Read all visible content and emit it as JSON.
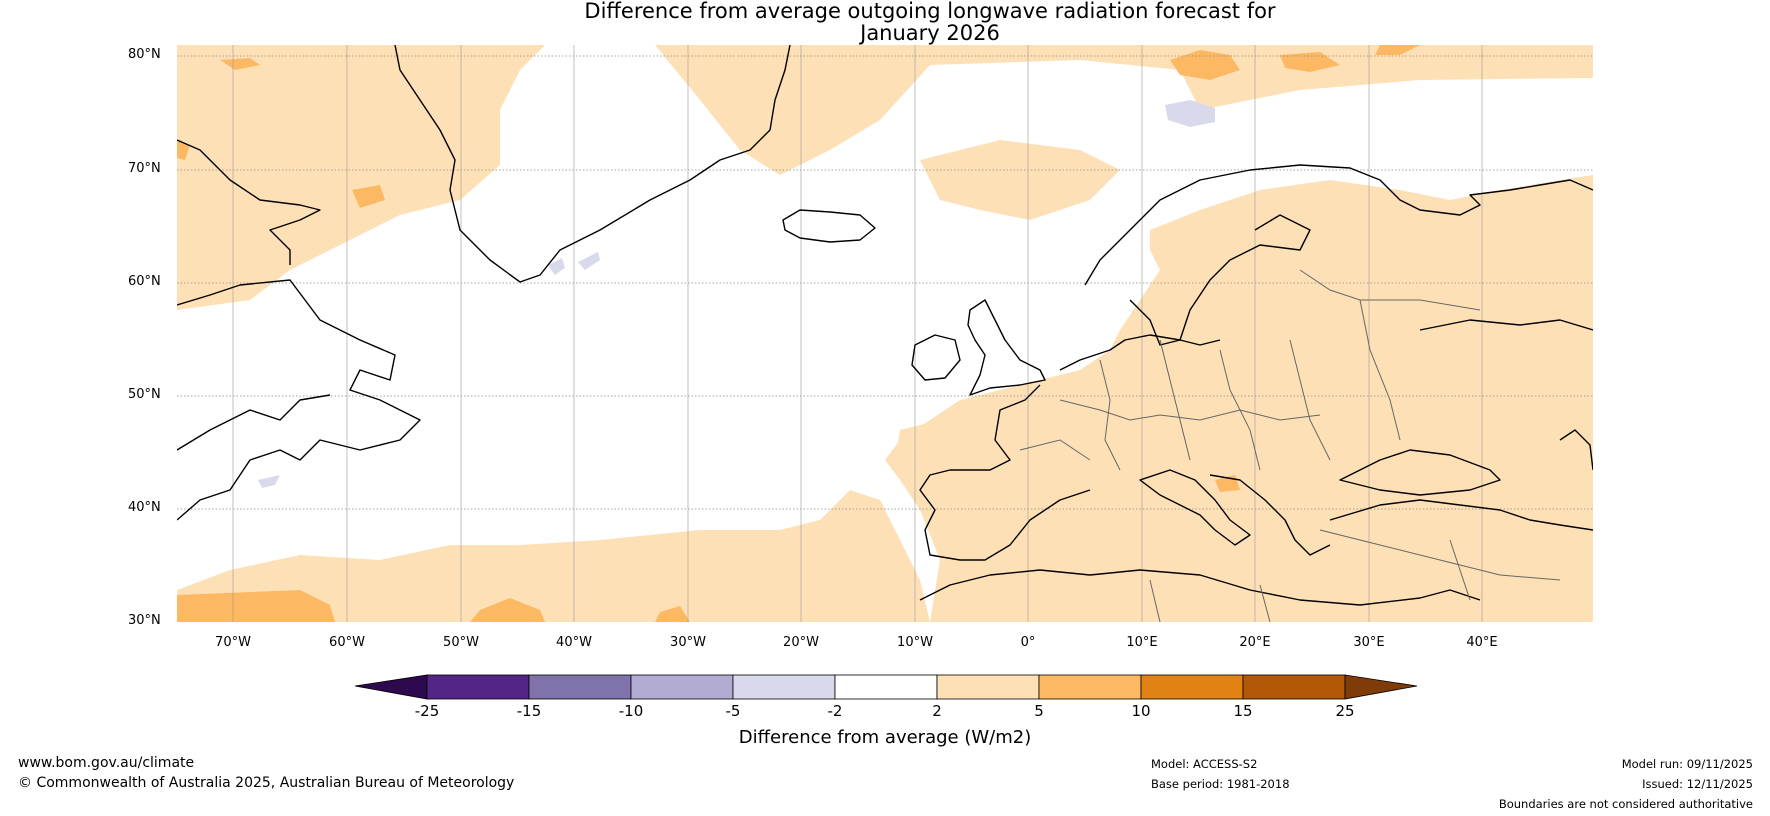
{
  "title_line1": "Difference from average outgoing longwave radiation forecast for",
  "title_line2": "January 2026",
  "lat_labels": [
    "80°N",
    "70°N",
    "60°N",
    "50°N",
    "40°N",
    "30°N"
  ],
  "lon_labels": [
    "70°W",
    "60°W",
    "50°W",
    "40°W",
    "30°W",
    "20°W",
    "10°W",
    "0°",
    "10°E",
    "20°E",
    "30°E",
    "40°E"
  ],
  "colorbar": {
    "title": "Difference from average (W/m2)",
    "ticks": [
      "-25",
      "-15",
      "-10",
      "-5",
      "-2",
      "2",
      "5",
      "10",
      "15",
      "25"
    ],
    "colors": [
      "#2d0a4e",
      "#532685",
      "#8073ac",
      "#b2abd2",
      "#d8daeb",
      "#ffffff",
      "#fee0b6",
      "#fdb863",
      "#e08214",
      "#b35806",
      "#7f3b08"
    ]
  },
  "footer": {
    "website": "www.bom.gov.au/climate",
    "copyright": "© Commonwealth of Australia 2025, Australian Bureau of Meteorology",
    "model": "Model: ACCESS-S2",
    "base_period": "Base period: 1981-2018",
    "model_run": "Model run: 09/11/2025",
    "issued": "Issued: 12/11/2025",
    "disclaimer": "Boundaries are not considered authoritative"
  }
}
